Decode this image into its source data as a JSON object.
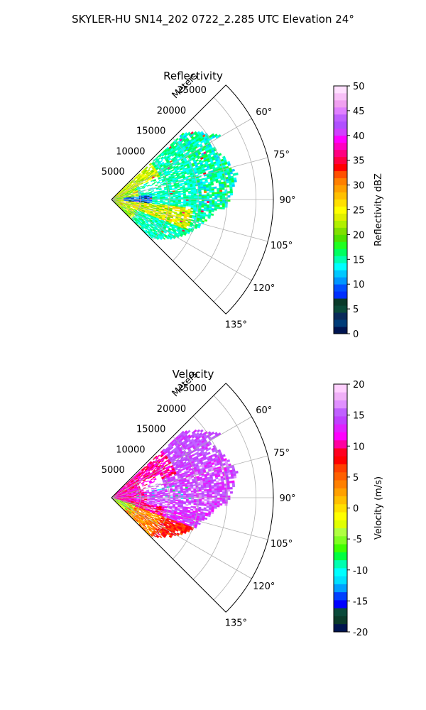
{
  "suptitle": "SKYLER-HU  SN14_202  0722_2.285 UTC Elevation 24°",
  "chart_data": [
    {
      "type": "heatmap",
      "title": "Reflectivity",
      "projection": "polar-sector",
      "theta_range_deg": [
        45,
        135
      ],
      "r_range_m": [
        0,
        28000
      ],
      "r_label": "Meters",
      "r_ticks": [
        "5000",
        "10000",
        "15000",
        "20000",
        "25000"
      ],
      "theta_ticks": [
        "60°",
        "75°",
        "90°",
        "105°",
        "120°",
        "135°"
      ],
      "grid": true,
      "colorbar": {
        "label": "Reflectivity dBZ",
        "range": [
          0,
          50
        ],
        "ticks": [
          "0",
          "5",
          "10",
          "15",
          "20",
          "25",
          "30",
          "35",
          "40",
          "45",
          "50"
        ],
        "colormap": [
          "#001450",
          "#003c78",
          "#0a2a5a",
          "#0a4a3a",
          "#0a3a2a",
          "#002fff",
          "#0050ff",
          "#0096ff",
          "#00c8ff",
          "#00ffff",
          "#00ffb0",
          "#00ff60",
          "#20ff20",
          "#50e000",
          "#80e000",
          "#b0f000",
          "#e0f000",
          "#ffff00",
          "#ffe000",
          "#ffc000",
          "#ffa000",
          "#ff8000",
          "#ff5000",
          "#ff0000",
          "#ff0040",
          "#ff0080",
          "#ff00c0",
          "#ff00ff",
          "#d040ff",
          "#b050ff",
          "#c060ff",
          "#e080ff",
          "#f0a0f0",
          "#f8c0f8",
          "#ffe0ff"
        ]
      },
      "data_summary": "Echoes mostly 10-22 dBZ (cyan-green) throughout the sector, higher 22-30 dBZ (yellow-orange) near the radar and along 95-110°, cyan 5-10 dBZ pockets near 85-95° at 2-6 km."
    },
    {
      "type": "heatmap",
      "title": "Velocity",
      "projection": "polar-sector",
      "theta_range_deg": [
        45,
        135
      ],
      "r_range_m": [
        0,
        28000
      ],
      "r_label": "Meters",
      "r_ticks": [
        "5000",
        "10000",
        "15000",
        "20000",
        "25000"
      ],
      "theta_ticks": [
        "60°",
        "75°",
        "90°",
        "105°",
        "120°",
        "135°"
      ],
      "grid": true,
      "colorbar": {
        "label": "Velocity (m/s)",
        "range": [
          -20,
          20
        ],
        "ticks": [
          "-20",
          "-15",
          "-10",
          "-5",
          "0",
          "5",
          "10",
          "15",
          "20"
        ],
        "colormap": [
          "#001450",
          "#0a3a2a",
          "#0a4a3a",
          "#0000ff",
          "#0040ff",
          "#00a0ff",
          "#00e0ff",
          "#00ffff",
          "#00ffb0",
          "#00ff40",
          "#40ff00",
          "#80ff20",
          "#b0ff40",
          "#e0ff00",
          "#ffff00",
          "#ffe000",
          "#ffc000",
          "#ffa000",
          "#ff8000",
          "#ff6000",
          "#ff4000",
          "#ff0000",
          "#ff0020",
          "#ff00a0",
          "#ff00ff",
          "#e020ff",
          "#c040ff",
          "#c060ff",
          "#e090ff",
          "#f0b0f8",
          "#ffd0ff"
        ]
      },
      "data_summary": "Positive velocities dominate: 8-12 m/s (red) at 45-85° near range 2-12 km, 12-16 m/s (magenta-violet) across 60-100° beyond 8 km, 0-6 m/s (yellow-orange) along 105-125°, green negative values near the radar at 105-125°."
    }
  ]
}
